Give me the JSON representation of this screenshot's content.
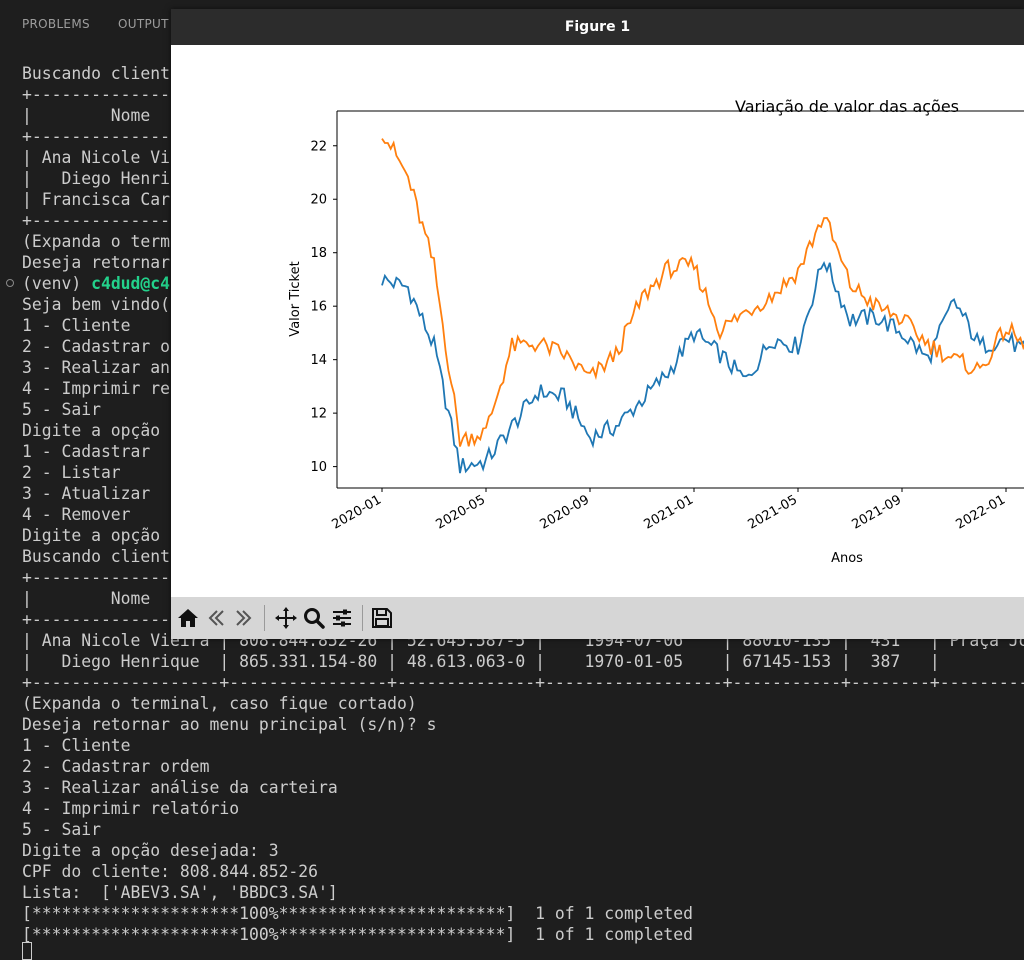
{
  "panel": {
    "tabs": [
      "PROBLEMS",
      "OUTPUT"
    ]
  },
  "terminal": {
    "lines": [
      "Buscando client",
      "+---------------",
      "|        Nome",
      "+---------------",
      "| Ana Nicole Vi",
      "|   Diego Henri",
      "| Francisca Car",
      "+---------------",
      "(Expanda o term",
      "Deseja retornar",
      "__PROMPT__",
      "Seja bem vindo(",
      "1 - Cliente",
      "2 - Cadastrar o",
      "3 - Realizar an",
      "4 - Imprimir re",
      "5 - Sair",
      "Digite a opção ",
      "1 - Cadastrar",
      "2 - Listar",
      "3 - Atualizar",
      "4 - Remover",
      "Digite a opção ",
      "Buscando client",
      "+---------------",
      "|        Nome",
      "+---------------",
      "| Ana Nicole Vieira | 808.844.852-26 | 52.645.587-5 |    1994-07-06    | 88010-135 |  431   | Praça Jo",
      "|   Diego Henrique  | 865.331.154-80 | 48.613.063-0 |    1970-01-05    | 67145-153 |  387   |         ",
      "+-------------------+----------------+--------------+------------------+-----------+--------+---------",
      "(Expanda o terminal, caso fique cortado)",
      "Deseja retornar ao menu principal (s/n)? s",
      "1 - Cliente",
      "2 - Cadastrar ordem",
      "3 - Realizar análise da carteira",
      "4 - Imprimir relatório",
      "5 - Sair",
      "Digite a opção desejada: 3",
      "CPF do cliente: 808.844.852-26",
      "Lista:  ['ABEV3.SA', 'BBDC3.SA']",
      "[*********************100%***********************]  1 of 1 completed",
      "[*********************100%***********************]  1 of 1 completed"
    ],
    "prompt_venv": "(venv) ",
    "prompt_user": "c4dud@c4"
  },
  "figure": {
    "window_title": "Figure 1",
    "toolbar": [
      "home-icon",
      "back-icon",
      "forward-icon",
      "pan-icon",
      "zoom-icon",
      "configure-subplots-icon",
      "save-icon"
    ]
  },
  "chart_data": {
    "type": "line",
    "title": "Variação de valor das ações",
    "xlabel": "Anos",
    "ylabel": "Valor Ticket",
    "x_ticks": [
      "2020-01",
      "2020-05",
      "2020-09",
      "2021-01",
      "2021-05",
      "2021-09",
      "2022-01"
    ],
    "y_ticks": [
      10,
      12,
      14,
      16,
      18,
      20,
      22
    ],
    "ylim": [
      9.2,
      23.3
    ],
    "grid": false,
    "x": [
      "2020-01",
      "2020-02",
      "2020-03",
      "2020-04",
      "2020-05",
      "2020-06",
      "2020-07",
      "2020-08",
      "2020-09",
      "2020-10",
      "2020-11",
      "2020-12",
      "2021-01",
      "2021-02",
      "2021-03",
      "2021-04",
      "2021-05",
      "2021-06",
      "2021-07",
      "2021-08",
      "2021-09",
      "2021-10",
      "2021-11",
      "2021-12",
      "2022-01",
      "2022-02"
    ],
    "series": [
      {
        "color": "#1f77b4",
        "values": [
          17.0,
          16.7,
          14.5,
          10.0,
          10.2,
          11.5,
          12.8,
          12.6,
          11.1,
          11.5,
          12.5,
          13.5,
          15.0,
          14.2,
          13.2,
          14.8,
          14.5,
          17.8,
          15.5,
          15.6,
          15.0,
          14.0,
          16.2,
          14.5,
          14.8,
          14.1
        ]
      },
      {
        "color": "#ff7f0e",
        "values": [
          22.6,
          20.8,
          17.5,
          11.0,
          11.3,
          14.5,
          14.6,
          14.2,
          13.3,
          14.2,
          16.3,
          17.4,
          17.5,
          15.1,
          15.8,
          16.4,
          17.3,
          19.4,
          16.8,
          16.0,
          15.5,
          14.6,
          14.0,
          13.6,
          15.2,
          14.2
        ]
      }
    ]
  }
}
